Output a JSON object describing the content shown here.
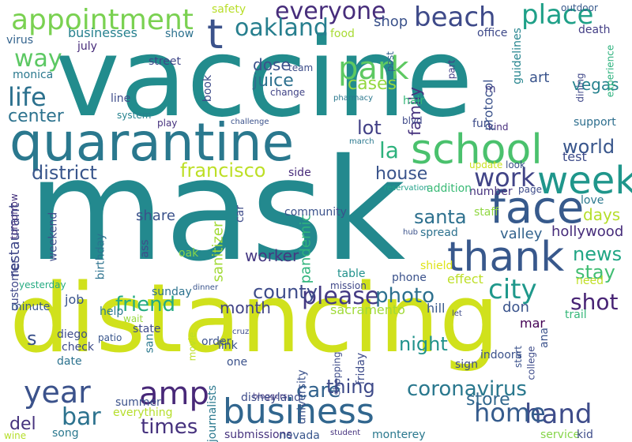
{
  "words": [
    {
      "text": "mask",
      "color": "#23898e"
    },
    {
      "text": "vaccine",
      "color": "#228c8d"
    },
    {
      "text": "distancing",
      "color": "#d0e11c"
    },
    {
      "text": "quarantine",
      "color": "#2a788e"
    },
    {
      "text": "business",
      "color": "#31668e"
    },
    {
      "text": "school",
      "color": "#4ac16d"
    },
    {
      "text": "appointment",
      "color": "#7ad151"
    },
    {
      "text": "thank",
      "color": "#38588c"
    },
    {
      "text": "face",
      "color": "#375a8c"
    },
    {
      "text": "week",
      "color": "#1f968b"
    },
    {
      "text": "year",
      "color": "#3b528b"
    },
    {
      "text": "amp",
      "color": "#482878"
    },
    {
      "text": "beach",
      "color": "#3e4a89"
    },
    {
      "text": "everyone",
      "color": "#472d7b"
    },
    {
      "text": "place",
      "color": "#1fa088"
    },
    {
      "text": "oakland",
      "color": "#277f8e"
    },
    {
      "text": "park",
      "color": "#5ec962"
    },
    {
      "text": "life",
      "color": "#2c718e"
    },
    {
      "text": "way",
      "color": "#5cc863"
    },
    {
      "text": "t",
      "color": "#3b528b"
    },
    {
      "text": "city",
      "color": "#1f988b"
    },
    {
      "text": "please",
      "color": "#443a83"
    },
    {
      "text": "work",
      "color": "#414487"
    },
    {
      "text": "hand",
      "color": "#3e4c8a"
    },
    {
      "text": "home",
      "color": "#365c8d"
    },
    {
      "text": "coronavirus",
      "color": "#2a788e"
    },
    {
      "text": "friend",
      "color": "#25ab82"
    },
    {
      "text": "francisco",
      "color": "#bddf26"
    },
    {
      "text": "district",
      "color": "#39568c"
    },
    {
      "text": "la",
      "color": "#2db27d"
    },
    {
      "text": "santa",
      "color": "#2d708e"
    },
    {
      "text": "county",
      "color": "#3e4c8a"
    },
    {
      "text": "bar",
      "color": "#2c728e"
    },
    {
      "text": "times",
      "color": "#46327e"
    },
    {
      "text": "care",
      "color": "#33638d"
    },
    {
      "text": "shot",
      "color": "#482475"
    },
    {
      "text": "night",
      "color": "#20928c"
    },
    {
      "text": "thing",
      "color": "#3e4a89"
    },
    {
      "text": "photo",
      "color": "#2d708e"
    },
    {
      "text": "store",
      "color": "#31688e"
    },
    {
      "text": "world",
      "color": "#39568c"
    },
    {
      "text": "center",
      "color": "#2c728e"
    },
    {
      "text": "house",
      "color": "#3a548c"
    },
    {
      "text": "news",
      "color": "#21a685"
    },
    {
      "text": "stay",
      "color": "#40bd72"
    },
    {
      "text": "del",
      "color": "#46337e"
    },
    {
      "text": "month",
      "color": "#414487"
    },
    {
      "text": "lot",
      "color": "#424086"
    },
    {
      "text": "juice",
      "color": "#2d708e"
    },
    {
      "text": "dose",
      "color": "#3b528b"
    },
    {
      "text": "cases",
      "color": "#95d840"
    },
    {
      "text": "days",
      "color": "#b5de2b"
    },
    {
      "text": "hollywood",
      "color": "#472d7b"
    },
    {
      "text": "worker",
      "color": "#453882"
    },
    {
      "text": "share",
      "color": "#3b528b"
    },
    {
      "text": "valley",
      "color": "#33638d"
    },
    {
      "text": "test",
      "color": "#3e4c8a"
    },
    {
      "text": "pandemic",
      "color": "#2fb47c"
    },
    {
      "text": "sanitizer",
      "color": "#a2da37"
    },
    {
      "text": "restaurant",
      "color": "#3f4788"
    },
    {
      "text": "art",
      "color": "#3a548c"
    },
    {
      "text": "vegas",
      "color": "#26828e"
    },
    {
      "text": "family",
      "color": "#46327e"
    },
    {
      "text": "shop",
      "color": "#3b528b"
    },
    {
      "text": "businesses",
      "color": "#26818e"
    },
    {
      "text": "show",
      "color": "#2c718e"
    },
    {
      "text": "s",
      "color": "#3b528b"
    },
    {
      "text": "job",
      "color": "#3a548c"
    },
    {
      "text": "hill",
      "color": "#38598c"
    },
    {
      "text": "don",
      "color": "#3a548c"
    },
    {
      "text": "sacramento",
      "color": "#a0da39"
    },
    {
      "text": "mar",
      "color": "#440154"
    },
    {
      "text": "death",
      "color": "#433e85"
    },
    {
      "text": "office",
      "color": "#3e4989"
    },
    {
      "text": "effect",
      "color": "#bddf26"
    },
    {
      "text": "support",
      "color": "#2e6f8e"
    },
    {
      "text": "fun",
      "color": "#3e4c8a"
    },
    {
      "text": "kind",
      "color": "#472e7c"
    },
    {
      "text": "monica",
      "color": "#2a788e"
    },
    {
      "text": "system",
      "color": "#26828e"
    },
    {
      "text": "july",
      "color": "#472c7a"
    },
    {
      "text": "street",
      "color": "#3f4788"
    },
    {
      "text": "line",
      "color": "#3e4c8a"
    },
    {
      "text": "virus",
      "color": "#33638d"
    },
    {
      "text": "food",
      "color": "#a8db34"
    },
    {
      "text": "safety",
      "color": "#b8de29"
    },
    {
      "text": "outdoor",
      "color": "#38598c"
    },
    {
      "text": "guidelines",
      "color": "#25848e"
    },
    {
      "text": "protocol",
      "color": "#3b528b"
    },
    {
      "text": "dining",
      "color": "#3f4788"
    },
    {
      "text": "experience",
      "color": "#2db27d"
    },
    {
      "text": "part",
      "color": "#424086"
    },
    {
      "text": "post",
      "color": "#33638d"
    },
    {
      "text": "m",
      "color": "#433e85"
    },
    {
      "text": "hair",
      "color": "#35b779"
    },
    {
      "text": "pharmacy",
      "color": "#2a788e"
    },
    {
      "text": "blvd",
      "color": "#3e4989"
    },
    {
      "text": "change",
      "color": "#414487"
    },
    {
      "text": "team",
      "color": "#3d4e8a"
    },
    {
      "text": "book",
      "color": "#3e4c8a"
    },
    {
      "text": "challenge",
      "color": "#3b528b"
    },
    {
      "text": "play",
      "color": "#46327e"
    },
    {
      "text": "march",
      "color": "#2a788e"
    },
    {
      "text": "side",
      "color": "#472a7a"
    },
    {
      "text": "update",
      "color": "#cae11f"
    },
    {
      "text": "look",
      "color": "#3b528b"
    },
    {
      "text": "number",
      "color": "#46327e"
    },
    {
      "text": "staff",
      "color": "#90d743"
    },
    {
      "text": "addition",
      "color": "#3aba76"
    },
    {
      "text": "reservation",
      "color": "#1fa088"
    },
    {
      "text": "page",
      "color": "#3e4c8a"
    },
    {
      "text": "love",
      "color": "#2a788e"
    },
    {
      "text": "spread",
      "color": "#2c718e"
    },
    {
      "text": "hub",
      "color": "#3b528b"
    },
    {
      "text": "shield",
      "color": "#dde318"
    },
    {
      "text": "need",
      "color": "#c0df25"
    },
    {
      "text": "mission",
      "color": "#3f4788"
    },
    {
      "text": "table",
      "color": "#21918c"
    },
    {
      "text": "phone",
      "color": "#3b528b"
    },
    {
      "text": "car",
      "color": "#3e4c8a"
    },
    {
      "text": "community",
      "color": "#3b528b"
    },
    {
      "text": "oak",
      "color": "#86d549"
    },
    {
      "text": "ass",
      "color": "#3e4c8a"
    },
    {
      "text": "birthday",
      "color": "#2c728e"
    },
    {
      "text": "weekend",
      "color": "#3e4c8a"
    },
    {
      "text": "tomorrow",
      "color": "#46327e"
    },
    {
      "text": "customer",
      "color": "#3f4788"
    },
    {
      "text": "yesterday",
      "color": "#25ab82"
    },
    {
      "text": "sunday",
      "color": "#2c728e"
    },
    {
      "text": "dinner",
      "color": "#3a548c"
    },
    {
      "text": "minute",
      "color": "#38598c"
    },
    {
      "text": "help",
      "color": "#2a788e"
    },
    {
      "text": "wait",
      "color": "#98d83e"
    },
    {
      "text": "state",
      "color": "#3e4c8a"
    },
    {
      "text": "san",
      "color": "#2a788e"
    },
    {
      "text": "diego",
      "color": "#3e4c8a"
    },
    {
      "text": "check",
      "color": "#3e4c8a"
    },
    {
      "text": "date",
      "color": "#2c728e"
    },
    {
      "text": "patio",
      "color": "#39568c"
    },
    {
      "text": "movie",
      "color": "#bddf26"
    },
    {
      "text": "order",
      "color": "#3b528b"
    },
    {
      "text": "link",
      "color": "#3b528b"
    },
    {
      "text": "one",
      "color": "#3b528b"
    },
    {
      "text": "cruz",
      "color": "#3e4c8a"
    },
    {
      "text": "shopping",
      "color": "#3e4c8a"
    },
    {
      "text": "friday",
      "color": "#3e4c8a"
    },
    {
      "text": "university",
      "color": "#3b528b"
    },
    {
      "text": "journalists",
      "color": "#2a788e"
    },
    {
      "text": "bloggers",
      "color": "#46327e"
    },
    {
      "text": "disneyland",
      "color": "#3e4c8a"
    },
    {
      "text": "let",
      "color": "#3e4c8a"
    },
    {
      "text": "indoors",
      "color": "#3b528b"
    },
    {
      "text": "sign",
      "color": "#3e4c8a"
    },
    {
      "text": "start",
      "color": "#3b528b"
    },
    {
      "text": "college",
      "color": "#3e4c8a"
    },
    {
      "text": "ana",
      "color": "#3b528b"
    },
    {
      "text": "trail",
      "color": "#35b779"
    },
    {
      "text": "summer",
      "color": "#3b528b"
    },
    {
      "text": "wine",
      "color": "#b5de2b"
    },
    {
      "text": "song",
      "color": "#2a788e"
    },
    {
      "text": "everything",
      "color": "#b5de2b"
    },
    {
      "text": "submissions",
      "color": "#46327e"
    },
    {
      "text": "nevada",
      "color": "#39568c"
    },
    {
      "text": "student",
      "color": "#46327e"
    },
    {
      "text": "monterey",
      "color": "#2a788e"
    },
    {
      "text": "service",
      "color": "#86d549"
    },
    {
      "text": "kid",
      "color": "#3e4c8a"
    },
    {
      "text": "hospital",
      "color": "#2a788e"
    }
  ]
}
